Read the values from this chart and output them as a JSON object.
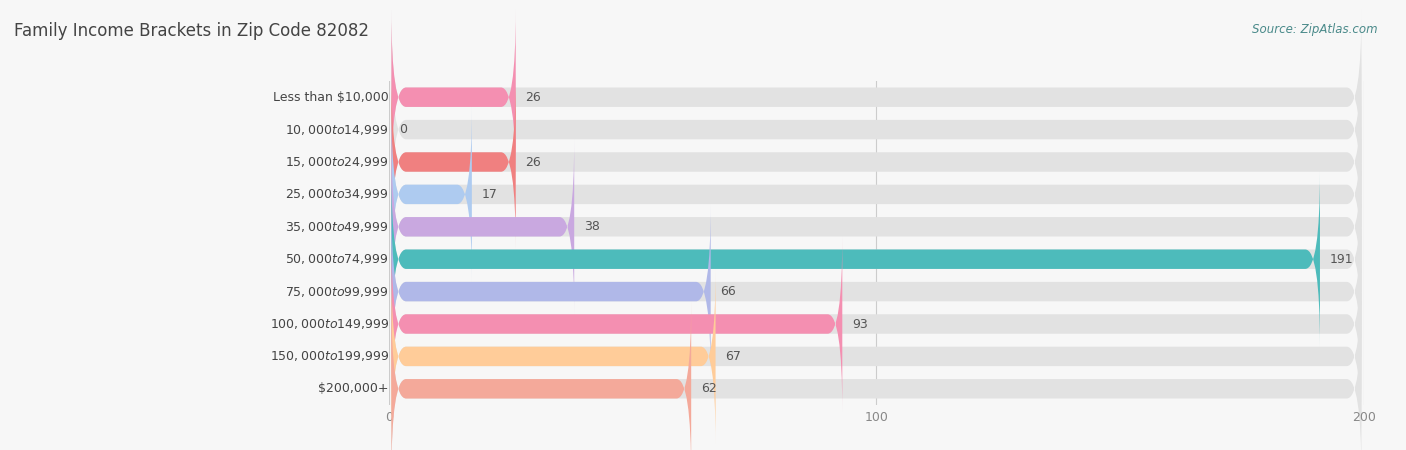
{
  "title": "Family Income Brackets in Zip Code 82082",
  "source": "Source: ZipAtlas.com",
  "categories": [
    "Less than $10,000",
    "$10,000 to $14,999",
    "$15,000 to $24,999",
    "$25,000 to $34,999",
    "$35,000 to $49,999",
    "$50,000 to $74,999",
    "$75,000 to $99,999",
    "$100,000 to $149,999",
    "$150,000 to $199,999",
    "$200,000+"
  ],
  "values": [
    26,
    0,
    26,
    17,
    38,
    191,
    66,
    93,
    67,
    62
  ],
  "bar_colors": [
    "#F48FB1",
    "#FFCC99",
    "#F08080",
    "#AECBF0",
    "#C9A8E0",
    "#4DBBBB",
    "#B0B8E8",
    "#F48FB1",
    "#FFCC99",
    "#F4A99A"
  ],
  "xlim": [
    0,
    200
  ],
  "xticks": [
    0,
    100,
    200
  ],
  "background_color": "#f7f7f7",
  "bar_bg_color": "#e2e2e2",
  "title_fontsize": 12,
  "label_fontsize": 9,
  "value_fontsize": 9,
  "source_fontsize": 8.5,
  "bar_height": 0.6,
  "title_color": "#444444",
  "label_color": "#444444",
  "value_color": "#555555",
  "source_color": "#4a8a8a",
  "tick_color": "#888888"
}
